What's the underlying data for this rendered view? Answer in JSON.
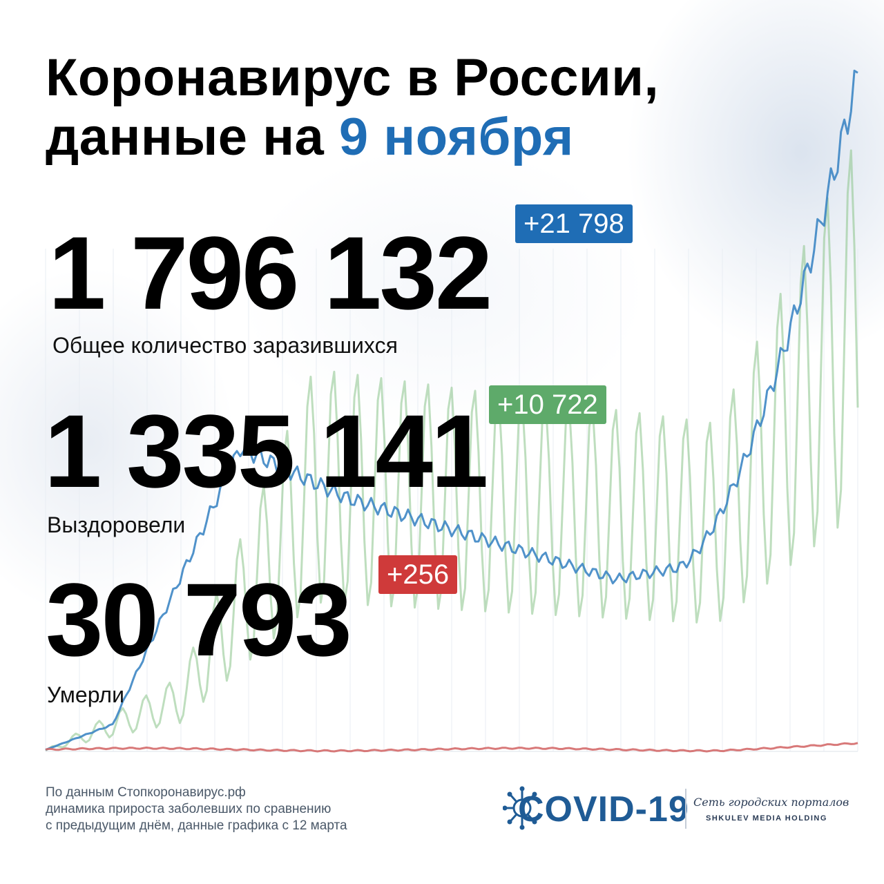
{
  "title": {
    "line1": "Коронавирус в России,",
    "line2_prefix": "данные на ",
    "date": "9 ноября"
  },
  "stats": {
    "infected": {
      "value": "1 796 132",
      "delta": "+21 798",
      "label": "Общее количество заразившихся"
    },
    "recovered": {
      "value": "1 335 141",
      "delta": "+10 722",
      "label": "Выздоровели"
    },
    "deaths": {
      "value": "30 793",
      "delta": "+256",
      "label": "Умерли"
    }
  },
  "footer": {
    "line1": "По данным Стопкоронавирус.рф",
    "line2": "динамика прироста заболевших по сравнению",
    "line3": "с предыдущим днём, данные графика с 12 марта"
  },
  "brand": {
    "covid": "COVID-19",
    "network": "Сеть городских порталов",
    "holding": "SHKULEV MEDIA HOLDING"
  },
  "colors": {
    "accent_blue": "#1f6db5",
    "infected_line": "#3d86c4",
    "recovered_line": "#93c893",
    "deaths_line": "#d46a6a",
    "badge_blue": "#1f6db5",
    "badge_green": "#5eaa6a",
    "badge_red": "#cf3a3a"
  },
  "chart_data": {
    "type": "line",
    "x_start": "12 марта",
    "x_end": "9 ноября",
    "n_days": 243,
    "ylim": [
      0,
      22000
    ],
    "grid": "faint-vertical",
    "series": [
      {
        "key": "infected_daily",
        "color": "#3d86c4"
      },
      {
        "key": "recovered_daily",
        "color": "#93c893"
      },
      {
        "key": "deaths_daily",
        "color": "#d46a6a"
      }
    ]
  }
}
